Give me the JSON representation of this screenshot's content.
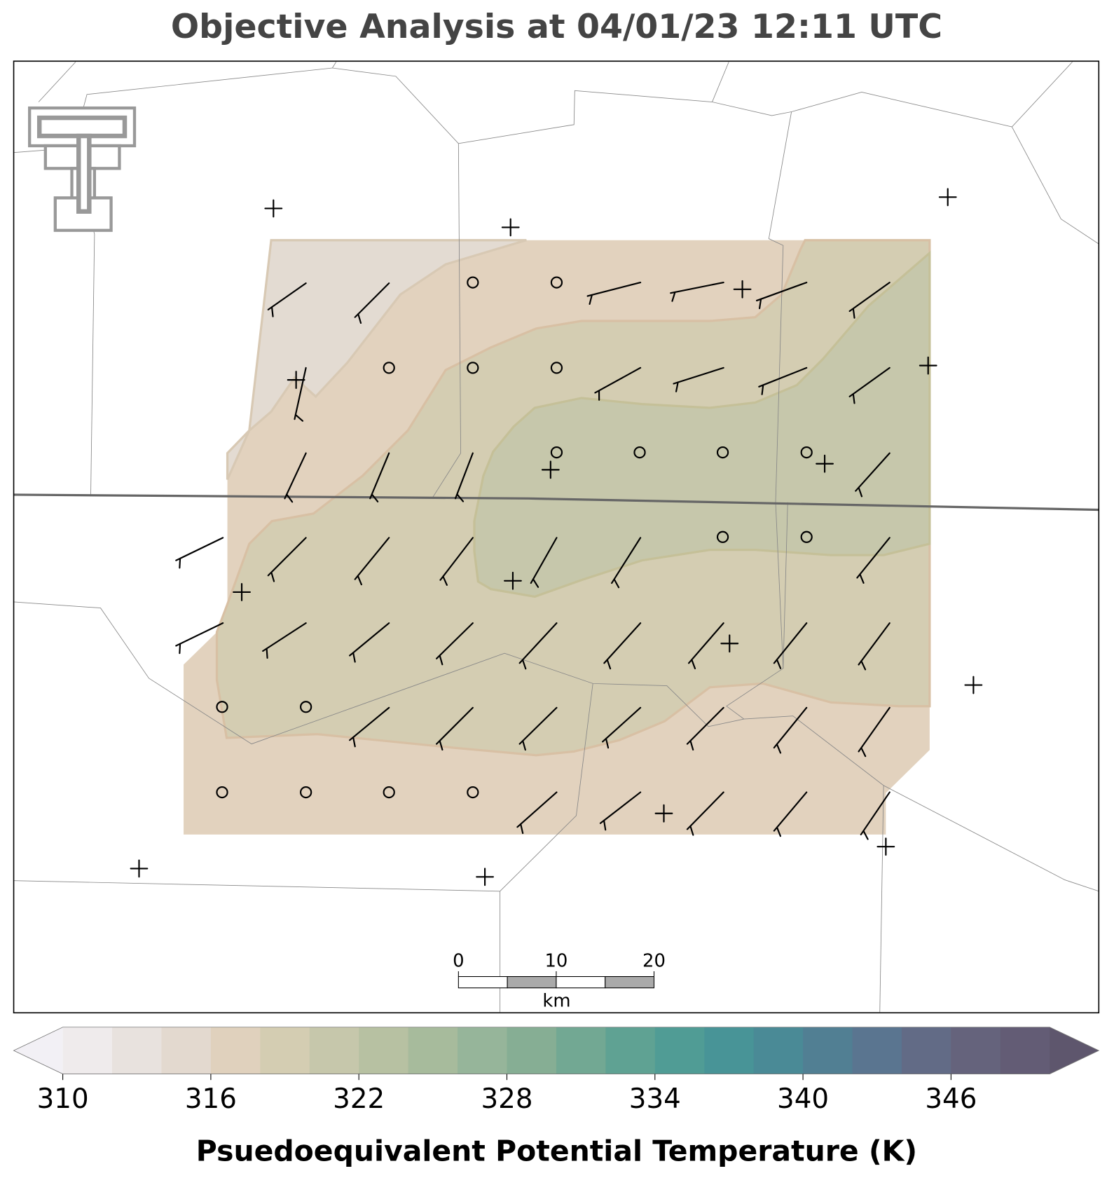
{
  "title": "Objective Analysis at 04/01/23 12:11 UTC",
  "colorbar": {
    "label": "Psuedoequivalent Potential Temperature (K)",
    "levels": [
      310,
      312,
      314,
      316,
      318,
      320,
      322,
      324,
      326,
      328,
      330,
      332,
      334,
      336,
      338,
      340,
      342,
      344,
      346,
      348,
      350
    ],
    "colors": [
      "#f2f0f5",
      "#efebec",
      "#e8e2de",
      "#e3d9cf",
      "#e0d1bd",
      "#d4cdb2",
      "#c6c7ab",
      "#b7c1a2",
      "#a7bb9c",
      "#96b59a",
      "#86ae94",
      "#72a893",
      "#5fa293",
      "#509c95",
      "#489497",
      "#4a8a96",
      "#517f93",
      "#5a7590",
      "#626b86",
      "#65637c",
      "#635c75",
      "#5e566d"
    ],
    "ticks": [
      310,
      316,
      322,
      328,
      334,
      340,
      346
    ],
    "extend": "both"
  },
  "scale_bar": {
    "xlim": [
      0,
      20
    ],
    "ticks": [
      0,
      10,
      20
    ],
    "unit": "km"
  }
}
